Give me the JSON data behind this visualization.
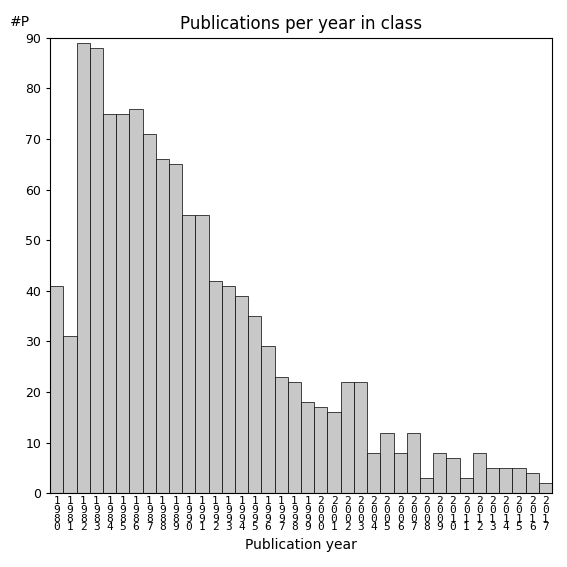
{
  "title": "Publications per year in class",
  "xlabel": "Publication year",
  "ylabel": "#P",
  "years": [
    1980,
    1981,
    1982,
    1983,
    1984,
    1985,
    1986,
    1987,
    1988,
    1989,
    1990,
    1991,
    1992,
    1993,
    1994,
    1995,
    1996,
    1997,
    1998,
    1999,
    2000,
    2001,
    2002,
    2003,
    2004,
    2005,
    2006,
    2007,
    2008,
    2009,
    2010,
    2011,
    2012,
    2013,
    2014,
    2015,
    2016,
    2017
  ],
  "values": [
    41,
    31,
    89,
    88,
    75,
    75,
    76,
    71,
    66,
    65,
    55,
    55,
    42,
    41,
    39,
    35,
    29,
    23,
    22,
    18,
    17,
    16,
    22,
    22,
    8,
    12,
    8,
    12,
    3,
    8,
    7,
    3,
    8,
    5,
    5,
    5,
    4,
    2
  ],
  "bar_color": "#c8c8c8",
  "bar_edge_color": "#000000",
  "ylim": [
    0,
    90
  ],
  "yticks": [
    0,
    10,
    20,
    30,
    40,
    50,
    60,
    70,
    80,
    90
  ],
  "background_color": "#ffffff",
  "title_fontsize": 12,
  "label_fontsize": 10,
  "tick_fontsize": 9,
  "ylabel_fontsize": 10
}
